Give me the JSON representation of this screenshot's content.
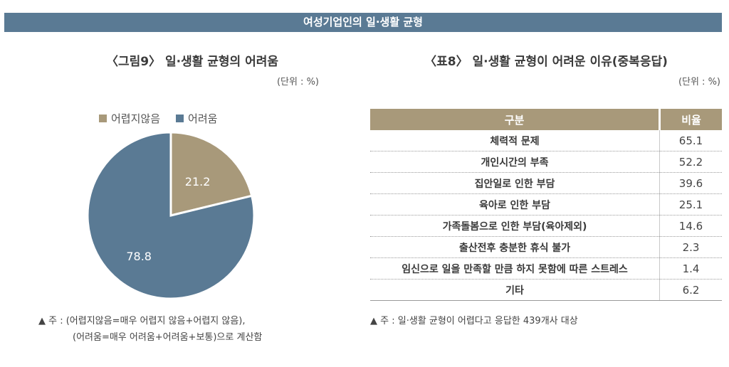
{
  "banner": {
    "title": "여성기업인의 일·생활 균형"
  },
  "left": {
    "heading": "〈그림9〉 일·생활 균형의 어려움",
    "unit": "(단위 : %)",
    "note_line1": "▲ 주 : (어렵지않음=매우 어렵지 않음+어렵지 않음),",
    "note_line2": "(어려움=매우 어려움+어려움+보통)으로 계산함"
  },
  "right": {
    "heading": "〈표8〉 일·생활 균형이 어려운 이유(중복응답)",
    "unit": "(단위 : %)",
    "note": "▲ 주 : 일·생활 균형이 어렵다고 응답한 439개사 대상"
  },
  "chart_data": [
    {
      "type": "pie",
      "title": "〈그림9〉 일·생활 균형의 어려움",
      "unit": "%",
      "legend_position": "top",
      "categories": [
        "어렵지않음",
        "어려움"
      ],
      "values": [
        21.2,
        78.8
      ],
      "labels": [
        "21.2",
        "78.8"
      ],
      "colors": [
        "#a8997a",
        "#5a7a94"
      ]
    },
    {
      "type": "table",
      "title": "〈표8〉 일·생활 균형이 어려운 이유(중복응답)",
      "unit": "%",
      "columns": [
        "구분",
        "비율"
      ],
      "rows": [
        {
          "label": "체력적 문제",
          "value": "65.1"
        },
        {
          "label": "개인시간의 부족",
          "value": "52.2"
        },
        {
          "label": "집안일로 인한 부담",
          "value": "39.6"
        },
        {
          "label": "육아로 인한 부담",
          "value": "25.1"
        },
        {
          "label": "가족돌봄으로 인한 부담(육아제외)",
          "value": "14.6"
        },
        {
          "label": "출산전후 충분한 휴식 불가",
          "value": "2.3"
        },
        {
          "label": "임신으로 일을 만족할 만큼 하지 못함에 따른 스트레스",
          "value": "1.4"
        },
        {
          "label": "기타",
          "value": "6.2"
        }
      ]
    }
  ]
}
